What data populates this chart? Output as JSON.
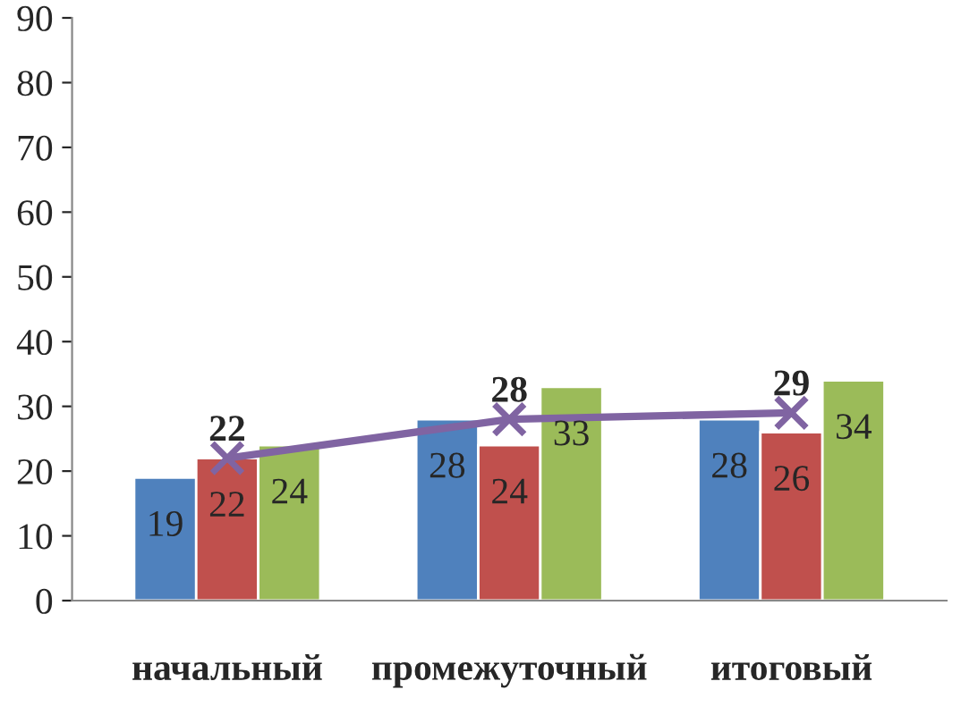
{
  "chart_data": {
    "type": "bar",
    "categories": [
      "начальный",
      "промежуточный",
      "итоговый"
    ],
    "series": [
      {
        "color": "#4f81bd",
        "values": [
          19,
          28,
          28
        ]
      },
      {
        "color": "#c0504d",
        "values": [
          22,
          24,
          26
        ]
      },
      {
        "color": "#9bbb59",
        "values": [
          24,
          33,
          34
        ]
      },
      {
        "type": "line",
        "color": "#8064a2",
        "values": [
          22,
          28,
          29
        ]
      }
    ],
    "ylim": [
      0,
      90
    ],
    "yticks": [
      0,
      10,
      20,
      30,
      40,
      50,
      60,
      70,
      80,
      90
    ],
    "data_labels": true,
    "marker": "cross",
    "line_style": "solid"
  }
}
